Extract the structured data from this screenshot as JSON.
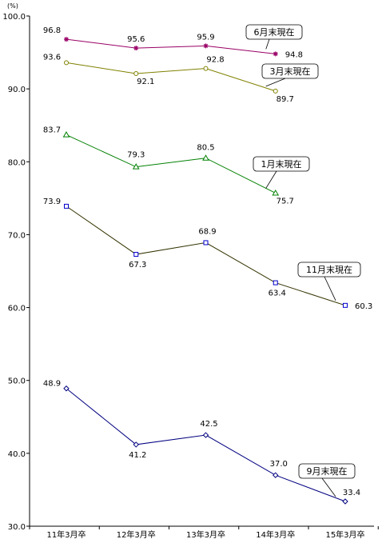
{
  "chart_data": {
    "type": "line",
    "unit": "(%)",
    "ylim": [
      30,
      100
    ],
    "yticks": [
      "100.0",
      "90.0",
      "80.0",
      "70.0",
      "60.0",
      "50.0",
      "40.0",
      "30.0"
    ],
    "categories": [
      "11年3月卒",
      "12年3月卒",
      "13年3月卒",
      "14年3月卒",
      "15年3月卒"
    ],
    "series": [
      {
        "name": "6月末現在",
        "values": [
          96.8,
          95.6,
          95.9,
          94.8,
          null
        ],
        "labels": [
          "96.8",
          "95.6",
          "95.9",
          "94.8",
          ""
        ],
        "color": "#990066",
        "marker": "star"
      },
      {
        "name": "3月末現在",
        "values": [
          93.6,
          92.1,
          92.8,
          89.7,
          null
        ],
        "labels": [
          "93.6",
          "92.1",
          "92.8",
          "89.7",
          ""
        ],
        "color": "#808000",
        "marker": "circle"
      },
      {
        "name": "1月末現在",
        "values": [
          83.7,
          79.3,
          80.5,
          75.7,
          null
        ],
        "labels": [
          "83.7",
          "79.3",
          "80.5",
          "75.7",
          ""
        ],
        "color": "#008000",
        "marker": "triangle"
      },
      {
        "name": "11月末現在",
        "values": [
          73.9,
          67.3,
          68.9,
          63.4,
          60.3
        ],
        "labels": [
          "73.9",
          "67.3",
          "68.9",
          "63.4",
          "60.3"
        ],
        "color": "#333300",
        "marker": "square"
      },
      {
        "name": "9月末現在",
        "values": [
          48.9,
          41.2,
          42.5,
          37.0,
          33.4
        ],
        "labels": [
          "48.9",
          "41.2",
          "42.5",
          "37.0",
          "33.4"
        ],
        "color": "#000080",
        "marker": "diamond"
      }
    ],
    "grid": false
  }
}
